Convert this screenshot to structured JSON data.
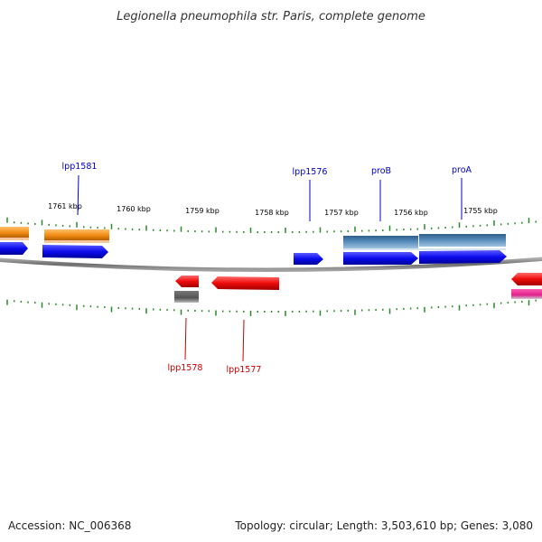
{
  "title": "Legionella pneumophila str. Paris, complete genome",
  "footer": {
    "accession": "Accession: NC_006368",
    "topology": "Topology: circular; Length: 3,503,610 bp; Genes: 3,080"
  },
  "scale_labels": [
    "1761 kbp",
    "1760 kbp",
    "1759 kbp",
    "1758 kbp",
    "1757 kbp",
    "1756 kbp",
    "1755 kbp"
  ],
  "gene_labels": {
    "top": [
      "lpp1581",
      "lpp1576",
      "proB",
      "proA"
    ],
    "bottom": [
      "lpp1578",
      "lpp1577"
    ]
  },
  "colors": {
    "forward_gene": "#0b0bee",
    "reverse_gene": "#ee0b0b",
    "forward_label": "#0000cc",
    "reverse_label": "#cc0000",
    "orange_feature": "#f28c12",
    "steel_feature": "#4f86b6",
    "gray_feature": "#555555",
    "magenta_feature": "#e0208c",
    "tick": "#2a8a2a",
    "backbone": "#808080"
  }
}
